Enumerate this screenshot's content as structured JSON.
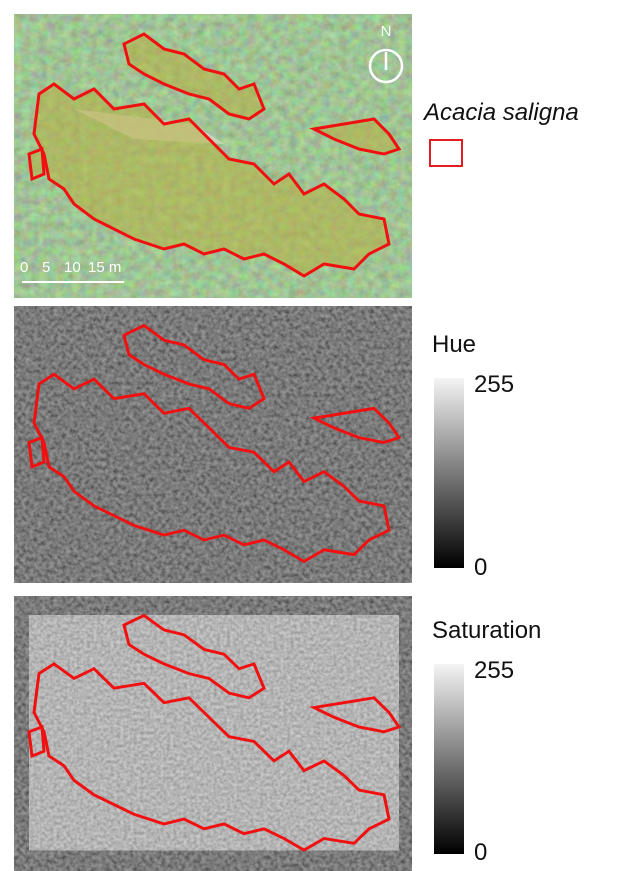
{
  "panels": [
    {
      "legend": {
        "title": "Acacia saligna"
      },
      "north_label": "N",
      "scale_bar": {
        "labels": [
          "0",
          "5",
          "10",
          "15 m"
        ]
      }
    },
    {
      "legend": {
        "title": "Hue",
        "max": 255,
        "min": 0
      }
    },
    {
      "legend": {
        "title": "Saturation",
        "max": 255,
        "min": 0
      }
    }
  ]
}
